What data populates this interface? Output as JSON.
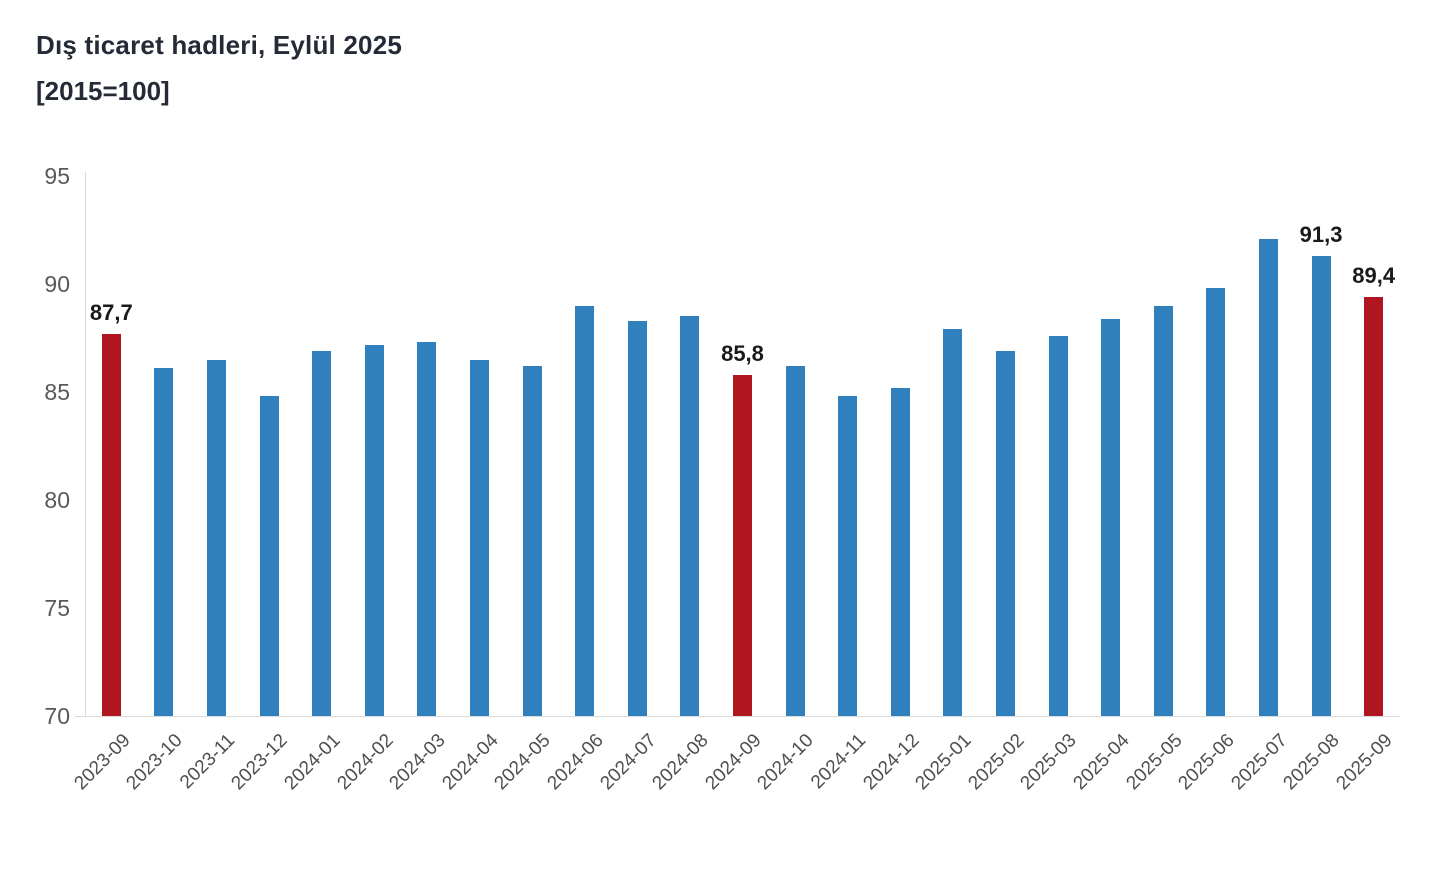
{
  "title": "Dış ticaret hadleri, Eylül 2025",
  "subtitle": "[2015=100]",
  "chart_data": {
    "type": "bar",
    "title": "Dış ticaret hadleri, Eylül 2025",
    "subtitle": "[2015=100]",
    "categories": [
      "2023-09",
      "2023-10",
      "2023-11",
      "2023-12",
      "2024-01",
      "2024-02",
      "2024-03",
      "2024-04",
      "2024-05",
      "2024-06",
      "2024-07",
      "2024-08",
      "2024-09",
      "2024-10",
      "2024-11",
      "2024-12",
      "2025-01",
      "2025-02",
      "2025-03",
      "2025-04",
      "2025-05",
      "2025-06",
      "2025-07",
      "2025-08",
      "2025-09"
    ],
    "values": [
      87.7,
      86.1,
      86.5,
      84.8,
      86.9,
      87.2,
      87.3,
      86.5,
      86.2,
      89.0,
      88.3,
      88.5,
      85.8,
      86.2,
      84.8,
      85.2,
      87.9,
      86.9,
      87.6,
      88.4,
      89.0,
      89.8,
      92.1,
      91.3,
      89.4
    ],
    "highlighted_indices": [
      0,
      12,
      24
    ],
    "data_labels": {
      "0": "87,7",
      "12": "85,8",
      "23": "91,3",
      "24": "89,4"
    },
    "xlabel": "",
    "ylabel": "",
    "ylim": [
      70,
      95
    ],
    "yticks": [
      70,
      75,
      80,
      85,
      90,
      95
    ],
    "grid": false,
    "legend": "none",
    "bar_color": "#2f80bd",
    "highlight_color": "#b0161f",
    "axis_color": "#d9d9d9"
  }
}
